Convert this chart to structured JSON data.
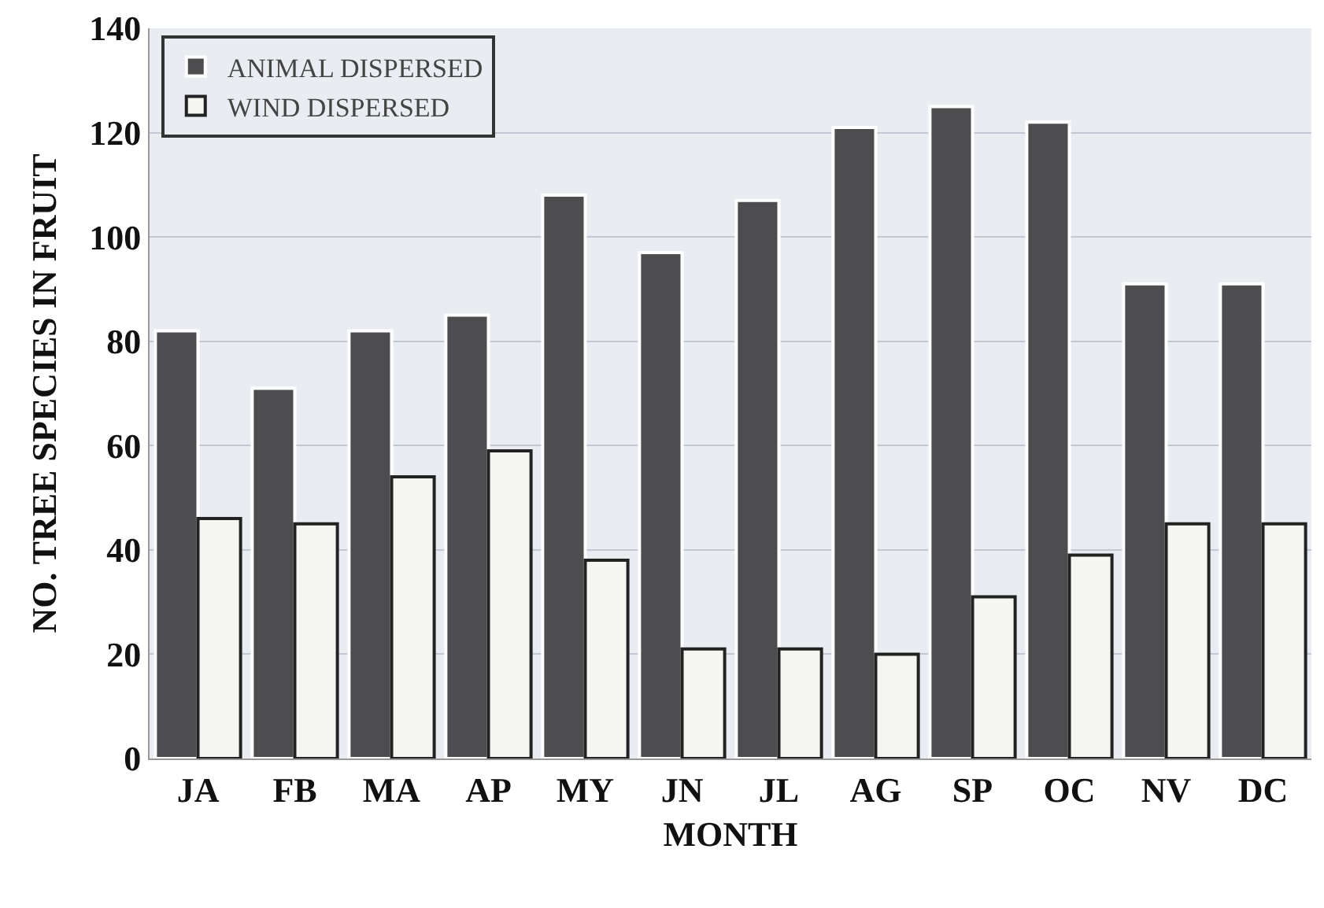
{
  "chart_data": {
    "type": "bar",
    "xlabel": "MONTH",
    "ylabel": "NO. TREE SPECIES IN FRUIT",
    "categories": [
      "JA",
      "FB",
      "MA",
      "AP",
      "MY",
      "JN",
      "JL",
      "AG",
      "SP",
      "OC",
      "NV",
      "DC"
    ],
    "series": [
      {
        "name": "ANIMAL DISPERSED",
        "color": "#4d4d4f",
        "values": [
          82,
          71,
          82,
          85,
          108,
          97,
          107,
          121,
          125,
          122,
          91,
          91
        ]
      },
      {
        "name": "WIND DISPERSED",
        "color": "#f5f5f2",
        "values": [
          46,
          45,
          54,
          59,
          38,
          21,
          21,
          20,
          31,
          39,
          45,
          45
        ]
      }
    ],
    "ylim": [
      0,
      140
    ],
    "yticks": [
      0,
      20,
      40,
      60,
      80,
      100,
      120,
      140
    ],
    "grid": "y",
    "legend": "top left"
  }
}
